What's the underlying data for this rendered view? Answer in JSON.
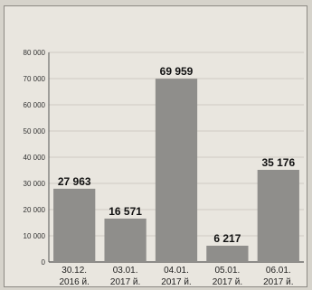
{
  "chart_data": {
    "type": "bar",
    "categories": [
      [
        "30.12.",
        "2016 й."
      ],
      [
        "03.01.",
        "2017 й."
      ],
      [
        "04.01.",
        "2017 й."
      ],
      [
        "05.01.",
        "2017 й."
      ],
      [
        "06.01.",
        "2017 й."
      ]
    ],
    "values": [
      27963,
      16571,
      69959,
      6217,
      35176
    ],
    "value_labels": [
      "27 963",
      "16 571",
      "69 959",
      "6 217",
      "35 176"
    ],
    "yticks": [
      0,
      10000,
      20000,
      30000,
      40000,
      50000,
      60000,
      70000,
      80000
    ],
    "ytick_labels": [
      "0",
      "10 000",
      "20 000",
      "30 000",
      "40 000",
      "50 000",
      "60 000",
      "70 000",
      "80 000"
    ],
    "ylim": [
      0,
      80000
    ],
    "grid": true,
    "colors": {
      "bar": "#8f8e8b",
      "grid": "#c4c1ba",
      "axis": "#555555"
    }
  }
}
